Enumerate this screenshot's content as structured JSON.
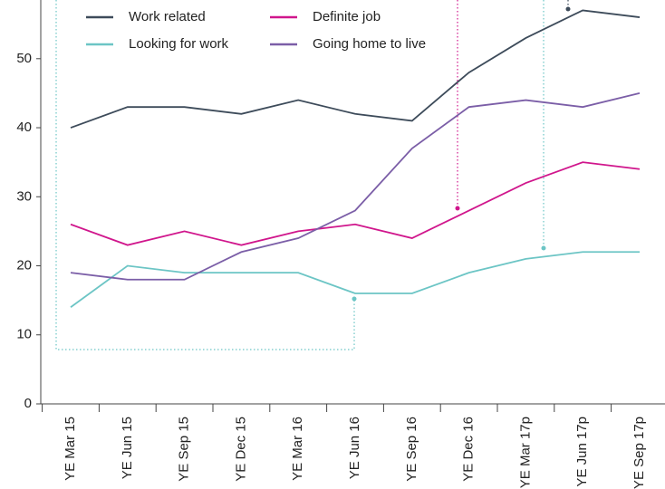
{
  "chart_data": {
    "type": "line",
    "categories": [
      "YE Mar 15",
      "YE Jun 15",
      "YE Sep 15",
      "YE Dec 15",
      "YE Mar 16",
      "YE Jun 16",
      "YE Sep 16",
      "YE Dec 16",
      "YE Mar 17p",
      "YE Jun 17p",
      "YE Sep 17p"
    ],
    "series": [
      {
        "name": "Work related",
        "color": "#3d4b5a",
        "values": [
          40,
          43,
          43,
          42,
          44,
          42,
          41,
          48,
          53,
          57,
          56
        ]
      },
      {
        "name": "Definite job",
        "color": "#d0168c",
        "values": [
          26,
          23,
          25,
          23,
          25,
          26,
          24,
          28,
          32,
          35,
          34
        ]
      },
      {
        "name": "Looking for work",
        "color": "#6cc5c5",
        "values": [
          14,
          20,
          19,
          19,
          19,
          16,
          16,
          19,
          21,
          22,
          22
        ]
      },
      {
        "name": "Going home to live",
        "color": "#7b5ea7",
        "values": [
          19,
          18,
          18,
          22,
          24,
          28,
          37,
          43,
          44,
          43,
          45
        ]
      }
    ],
    "ylim": [
      0,
      58.5
    ],
    "yticks": [
      0,
      10,
      20,
      30,
      40,
      50
    ],
    "grid": false
  }
}
